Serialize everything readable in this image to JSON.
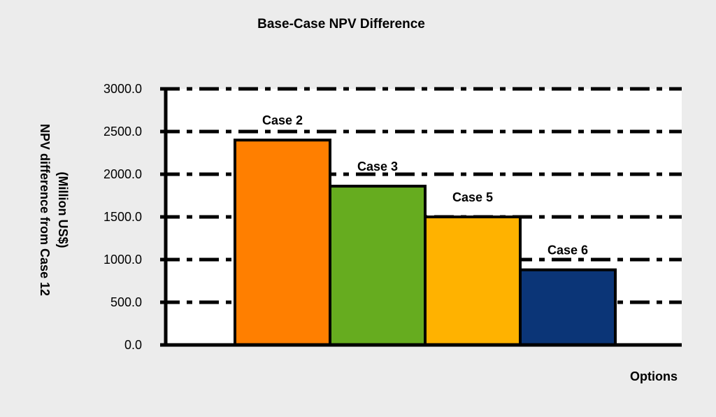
{
  "chart_data": {
    "type": "bar",
    "title": "Base-Case  NPV Difference",
    "xlabel": "Options",
    "ylabel_line1": "NPV difference from Case 12",
    "ylabel_line2": "(Million US$)",
    "categories": [
      "Case 2",
      "Case 3",
      "Case 5",
      "Case 6"
    ],
    "values": [
      2400,
      1860,
      1500,
      880
    ],
    "colors": [
      "#ff7f00",
      "#66ac1f",
      "#ffb200",
      "#0b3577"
    ],
    "ylim": [
      0,
      3000
    ],
    "yticks": [
      "0.0",
      "500.0",
      "1000.0",
      "1500.0",
      "2000.0",
      "2500.0",
      "3000.0"
    ],
    "grid": true,
    "legend": false
  }
}
